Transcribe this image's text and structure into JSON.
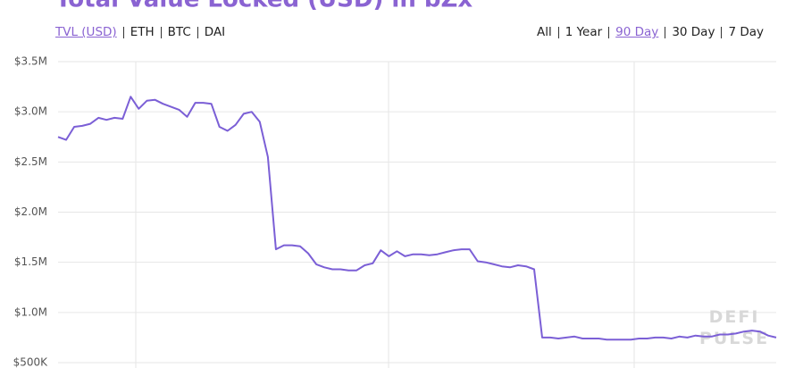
{
  "chart_data": {
    "type": "line",
    "title": "Total Value Locked (USD) in bZx",
    "categories": [
      null,
      null,
      null,
      null,
      null,
      null,
      null,
      null,
      null,
      null,
      null,
      null,
      null,
      null,
      null,
      null,
      null,
      null,
      null,
      null,
      null,
      null,
      null,
      null,
      null,
      null,
      null,
      null,
      null,
      null,
      null,
      null,
      null,
      null,
      null,
      null,
      null,
      null,
      null,
      null,
      null,
      null,
      null,
      null,
      null,
      null,
      null,
      null,
      null,
      null,
      null,
      null,
      null,
      null,
      null,
      null,
      null,
      null,
      null,
      null,
      null,
      null,
      null,
      null,
      null,
      null,
      null,
      null,
      null,
      null,
      null,
      null,
      null,
      null,
      null,
      null,
      null,
      null,
      null,
      null,
      null,
      null,
      null,
      null,
      null,
      null,
      null,
      null,
      null,
      null
    ],
    "values": [
      2750000,
      2720000,
      2850000,
      2860000,
      2880000,
      2940000,
      2920000,
      2940000,
      2930000,
      3150000,
      3030000,
      3110000,
      3120000,
      3080000,
      3050000,
      3020000,
      2950000,
      3090000,
      3090000,
      3080000,
      2850000,
      2810000,
      2870000,
      2980000,
      3000000,
      2900000,
      2550000,
      1630000,
      1670000,
      1670000,
      1660000,
      1590000,
      1480000,
      1450000,
      1430000,
      1430000,
      1420000,
      1420000,
      1470000,
      1490000,
      1620000,
      1560000,
      1610000,
      1560000,
      1580000,
      1580000,
      1570000,
      1580000,
      1600000,
      1620000,
      1630000,
      1630000,
      1510000,
      1500000,
      1480000,
      1460000,
      1450000,
      1470000,
      1460000,
      1430000,
      750000,
      750000,
      740000,
      750000,
      760000,
      740000,
      740000,
      740000,
      730000,
      730000,
      730000,
      730000,
      740000,
      740000,
      750000,
      750000,
      740000,
      760000,
      750000,
      770000,
      760000,
      760000,
      780000,
      780000,
      790000,
      810000,
      820000,
      810000,
      770000,
      750000
    ],
    "color": "#7b5fd6",
    "ylim": [
      500000,
      3500000
    ],
    "yticks": [
      {
        "value": 500000,
        "label": "$500K"
      },
      {
        "value": 1000000,
        "label": "$1.0M"
      },
      {
        "value": 1500000,
        "label": "$1.5M"
      },
      {
        "value": 2000000,
        "label": "$2.0M"
      },
      {
        "value": 2500000,
        "label": "$2.5M"
      },
      {
        "value": 3000000,
        "label": "$3.0M"
      },
      {
        "value": 3500000,
        "label": "$3.5M"
      }
    ],
    "grid": true
  },
  "units": {
    "options": [
      "TVL (USD)",
      "ETH",
      "BTC",
      "DAI"
    ],
    "selected": 0
  },
  "ranges": {
    "options": [
      "All",
      "1 Year",
      "90 Day",
      "30 Day",
      "7 Day"
    ],
    "selected": 2
  },
  "watermark": [
    "DEFI",
    "PULSE"
  ]
}
